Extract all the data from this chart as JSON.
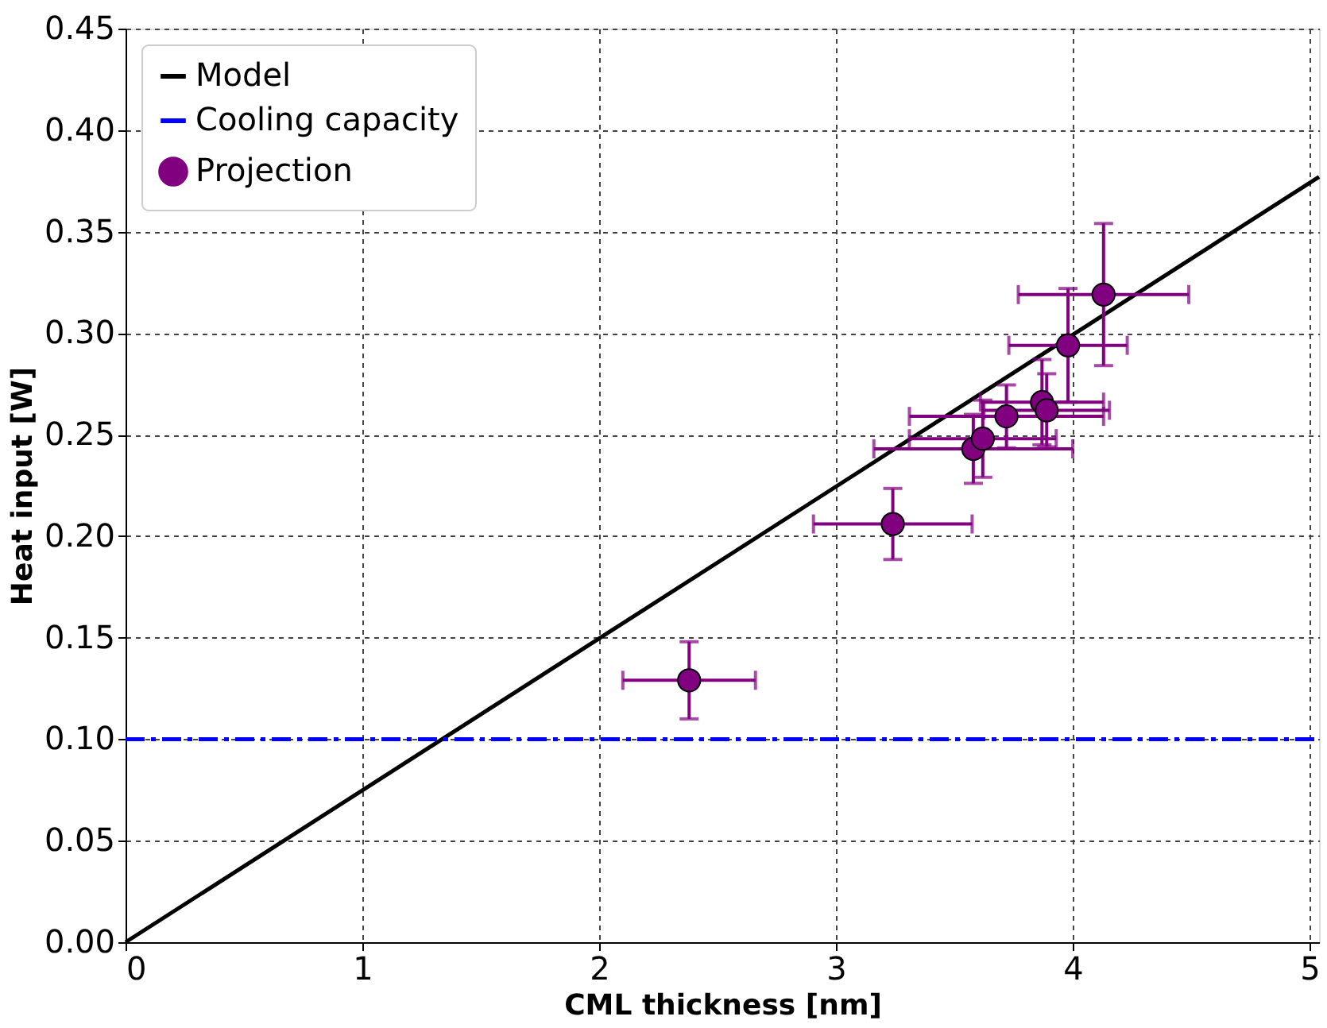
{
  "chart_data": {
    "type": "scatter",
    "xlabel": "CML thickness [nm]",
    "ylabel": "Heat input [W]",
    "xlim": [
      0,
      5.04
    ],
    "ylim": [
      0,
      0.45
    ],
    "xticks": [
      0,
      1,
      2,
      3,
      4,
      5
    ],
    "yticks": [
      {
        "value": 0,
        "label": "0.00"
      },
      {
        "value": 0.05,
        "label": "0.05"
      },
      {
        "value": 0.1,
        "label": "0.10"
      },
      {
        "value": 0.15,
        "label": "0.15"
      },
      {
        "value": 0.2,
        "label": "0.20"
      },
      {
        "value": 0.25,
        "label": "0.25"
      },
      {
        "value": 0.3,
        "label": "0.30"
      },
      {
        "value": 0.35,
        "label": "0.35"
      },
      {
        "value": 0.4,
        "label": "0.40"
      },
      {
        "value": 0.45,
        "label": "0.45"
      }
    ],
    "grid": true,
    "legend": "top left",
    "series": [
      {
        "name": "Model",
        "type": "line",
        "color": "#000000",
        "line_style": "solid",
        "marker": "none",
        "x": [
          0,
          5.04
        ],
        "values": [
          0,
          0.377
        ]
      },
      {
        "name": "Cooling capacity",
        "type": "line",
        "color": "#0000ff",
        "line_style": "dashdot",
        "marker": "none",
        "x": [
          0,
          5.04
        ],
        "values": [
          0.1,
          0.1
        ]
      },
      {
        "name": "Projection",
        "color": "#800080",
        "marker": "circle",
        "x": [
          2.38,
          3.24,
          3.58,
          3.62,
          3.72,
          3.87,
          3.89,
          3.98,
          4.13
        ],
        "values": [
          0.129,
          0.206,
          0.243,
          0.248,
          0.259,
          0.266,
          0.262,
          0.294,
          0.319
        ],
        "errors": [
          0.019,
          0.0175,
          0.017,
          0.019,
          0.0155,
          0.021,
          0.018,
          0.028,
          0.035
        ],
        "xerrors": [
          0.28,
          0.335,
          0.42,
          0.31,
          0.41,
          0.26,
          0.265,
          0.25,
          0.36
        ]
      }
    ]
  }
}
